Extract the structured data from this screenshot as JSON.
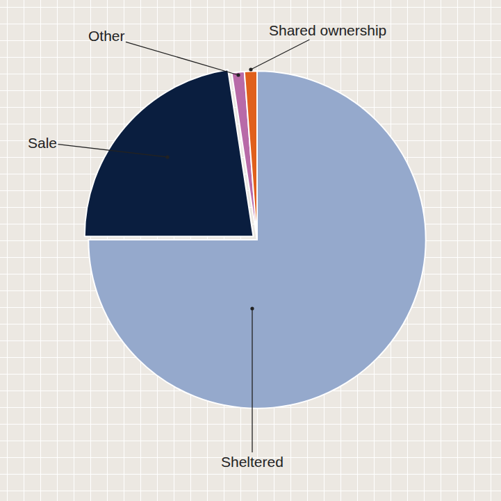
{
  "chart_data": {
    "type": "pie",
    "categories": [
      "Sheltered",
      "Sale",
      "Other",
      "Shared ownership"
    ],
    "values": [
      75,
      22.6,
      1.2,
      1.2
    ],
    "colors": [
      "#95a9cc",
      "#0a1e3f",
      "#b86aa8",
      "#e0601c"
    ]
  }
}
